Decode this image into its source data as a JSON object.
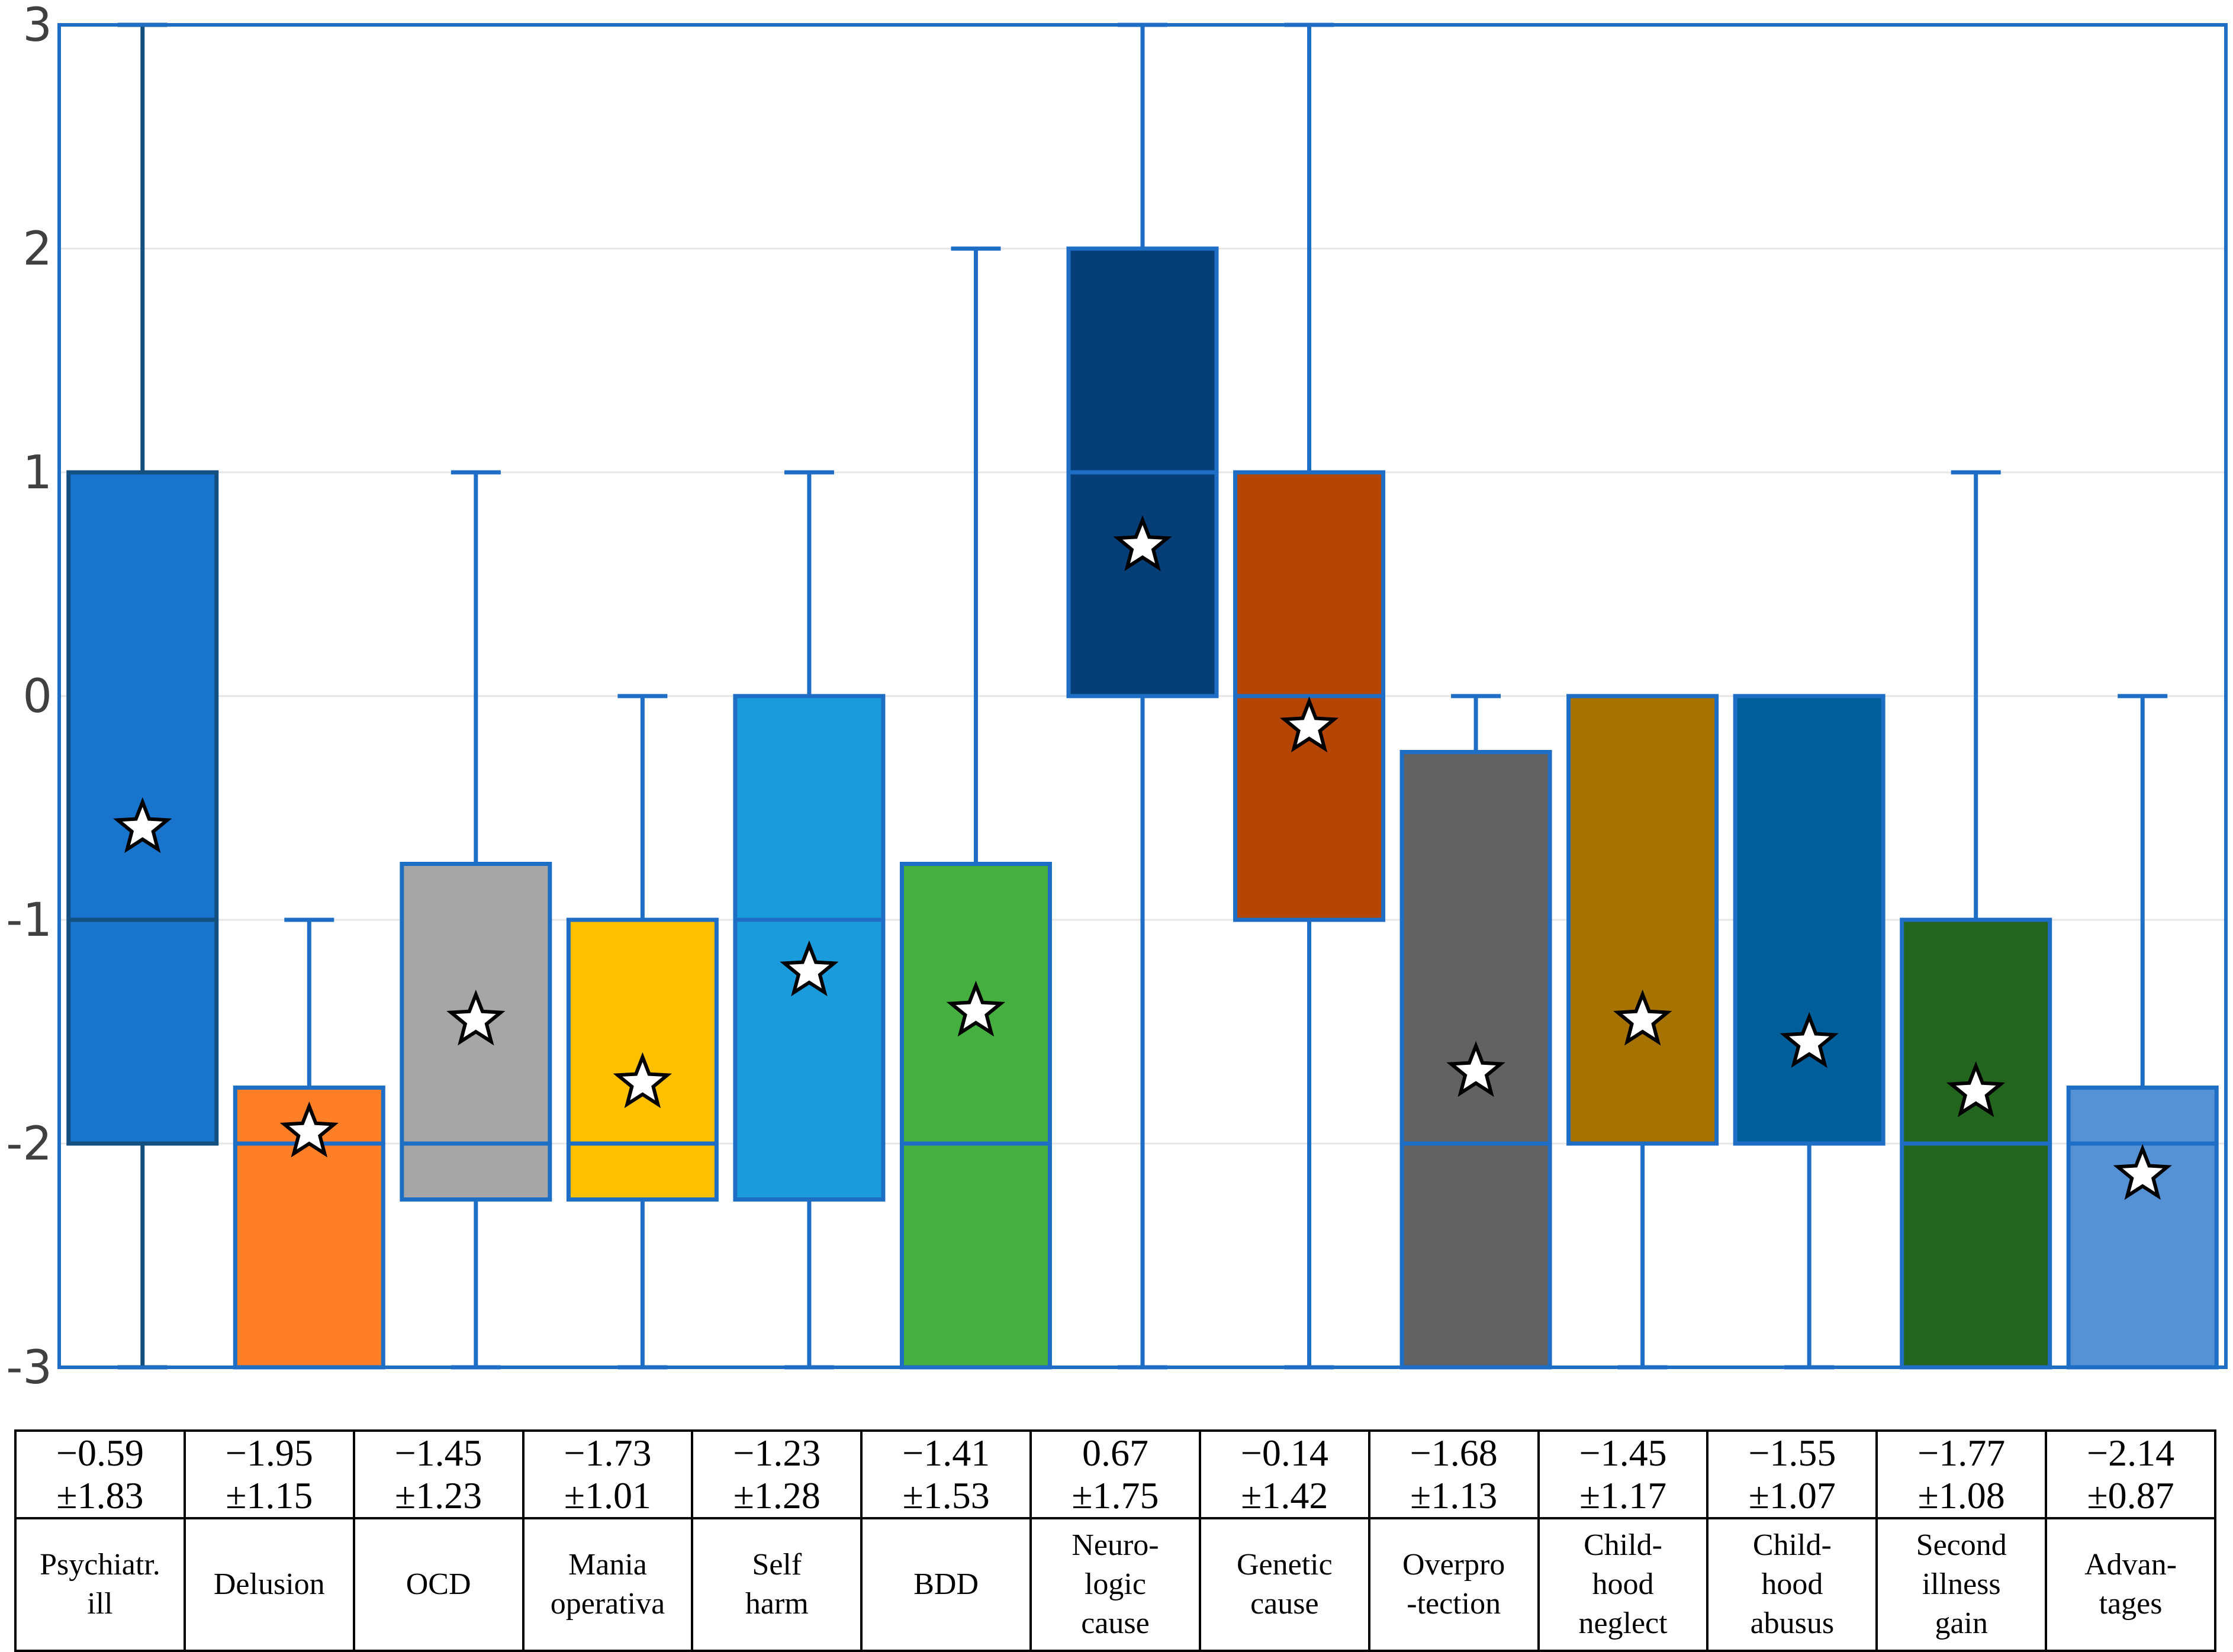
{
  "chart_data": {
    "type": "box",
    "title": "",
    "xlabel": "",
    "ylabel": "",
    "ylim": [
      -3,
      3
    ],
    "yticks": [
      3,
      2,
      1,
      0,
      -1,
      -2,
      -3
    ],
    "grid": true,
    "categories": [
      {
        "label": "Psychiatr.\nill",
        "color": "#1874CD",
        "edge": "#134f7f",
        "min": -3,
        "q1": -2,
        "median": -1,
        "q3": 1,
        "max": 3,
        "mean": -0.59,
        "sd": 1.83,
        "mean_text": "−0.59",
        "sd_text": "±1.83"
      },
      {
        "label": "Delusion",
        "color": "#FF7F27",
        "edge": "#1f6ec5",
        "min": -3,
        "q1": -3,
        "median": -2,
        "q3": -1.75,
        "max": -1,
        "mean": -1.95,
        "sd": 1.15,
        "mean_text": "−1.95",
        "sd_text": "±1.15"
      },
      {
        "label": "OCD",
        "color": "#A6A6A6",
        "edge": "#1f6ec5",
        "min": -3,
        "q1": -2.25,
        "median": -2,
        "q3": -0.75,
        "max": 1,
        "mean": -1.45,
        "sd": 1.23,
        "mean_text": "−1.45",
        "sd_text": "±1.23"
      },
      {
        "label": "Mania\noperativa",
        "color": "#FFC000",
        "edge": "#1f6ec5",
        "min": -3,
        "q1": -2.25,
        "median": -2,
        "q3": -1,
        "max": 0,
        "mean": -1.73,
        "sd": 1.01,
        "mean_text": "−1.73",
        "sd_text": "±1.01"
      },
      {
        "label": "Self\nharm",
        "color": "#1A9BDB",
        "edge": "#1f6ec5",
        "min": -3,
        "q1": -2.25,
        "median": -1,
        "q3": 0,
        "max": 1,
        "mean": -1.23,
        "sd": 1.28,
        "mean_text": "−1.23",
        "sd_text": "±1.28"
      },
      {
        "label": "BDD",
        "color": "#45B03F",
        "edge": "#1f6ec5",
        "min": -3,
        "q1": -3,
        "median": -2,
        "q3": -0.75,
        "max": 2,
        "mean": -1.41,
        "sd": 1.53,
        "mean_text": "−1.41",
        "sd_text": "±1.53"
      },
      {
        "label": "Neuro-\nlogic\ncause",
        "color": "#063F78",
        "edge": "#1f6ec5",
        "min": -3,
        "q1": 0,
        "median": 1,
        "q3": 2,
        "max": 3,
        "mean": 0.67,
        "sd": 1.75,
        "mean_text": "0.67",
        "sd_text": "±1.75"
      },
      {
        "label": "Genetic\ncause",
        "color": "#B54504",
        "edge": "#1f6ec5",
        "min": -3,
        "q1": -1,
        "median": 0,
        "q3": 1,
        "max": 3,
        "mean": -0.14,
        "sd": 1.42,
        "mean_text": "−0.14",
        "sd_text": "±1.42"
      },
      {
        "label": "Overpro\n-tection",
        "color": "#626262",
        "edge": "#1f6ec5",
        "min": -3,
        "q1": -3,
        "median": -2,
        "q3": -0.25,
        "max": 0,
        "mean": -1.68,
        "sd": 1.13,
        "mean_text": "−1.68",
        "sd_text": "±1.13"
      },
      {
        "label": "Child-\nhood\nneglect",
        "color": "#A67302",
        "edge": "#1f6ec5",
        "min": -3,
        "q1": -2,
        "median": -2,
        "q3": 0,
        "max": 0,
        "mean": -1.45,
        "sd": 1.17,
        "mean_text": "−1.45",
        "sd_text": "±1.17"
      },
      {
        "label": "Child-\nhood\nabusus",
        "color": "#005F9A",
        "edge": "#1f6ec5",
        "min": -3,
        "q1": -2,
        "median": -2,
        "q3": 0,
        "max": 0,
        "mean": -1.55,
        "sd": 1.07,
        "mean_text": "−1.55",
        "sd_text": "±1.07"
      },
      {
        "label": "Second\nillness\ngain",
        "color": "#23641F",
        "edge": "#1f6ec5",
        "min": -3,
        "q1": -3,
        "median": -2,
        "q3": -1,
        "max": 1,
        "mean": -1.77,
        "sd": 1.08,
        "mean_text": "−1.77",
        "sd_text": "±1.08"
      },
      {
        "label": "Advan-\ntages",
        "color": "#5591D5",
        "edge": "#1f6ec5",
        "min": -3,
        "q1": -3,
        "median": -2,
        "q3": -1.75,
        "max": 0,
        "mean": -2.14,
        "sd": 0.87,
        "mean_text": "−2.14",
        "sd_text": "±0.87"
      }
    ]
  }
}
